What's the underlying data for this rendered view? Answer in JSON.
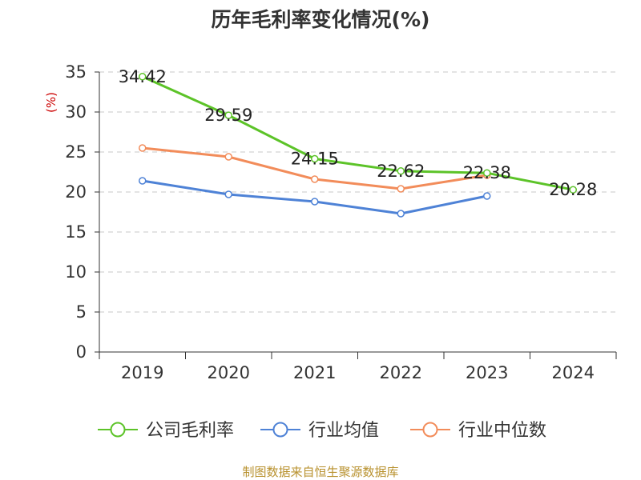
{
  "chart_data": {
    "type": "line",
    "title": "历年毛利率变化情况(%)",
    "ylabel": "(%)",
    "xlabel": "",
    "categories": [
      "2019",
      "2020",
      "2021",
      "2022",
      "2023",
      "2024"
    ],
    "ylim": [
      0,
      35
    ],
    "yticks": [
      0,
      5,
      10,
      15,
      20,
      25,
      30,
      35
    ],
    "grid": true,
    "legend_position": "bottom",
    "series": [
      {
        "name": "公司毛利率",
        "color": "#5cc328",
        "values": [
          34.42,
          29.59,
          24.15,
          22.62,
          22.38,
          20.28
        ],
        "labels": [
          "34.42",
          "29.59",
          "24.15",
          "22.62",
          "22.38",
          "20.28"
        ]
      },
      {
        "name": "行业均值",
        "color": "#4e82d6",
        "values": [
          21.4,
          19.7,
          18.8,
          17.3,
          19.5,
          null
        ]
      },
      {
        "name": "行业中位数",
        "color": "#f28c5a",
        "values": [
          25.5,
          24.4,
          21.6,
          20.4,
          22.1,
          null
        ]
      }
    ]
  },
  "footer": {
    "source": "制图数据来自恒生聚源数据库"
  }
}
